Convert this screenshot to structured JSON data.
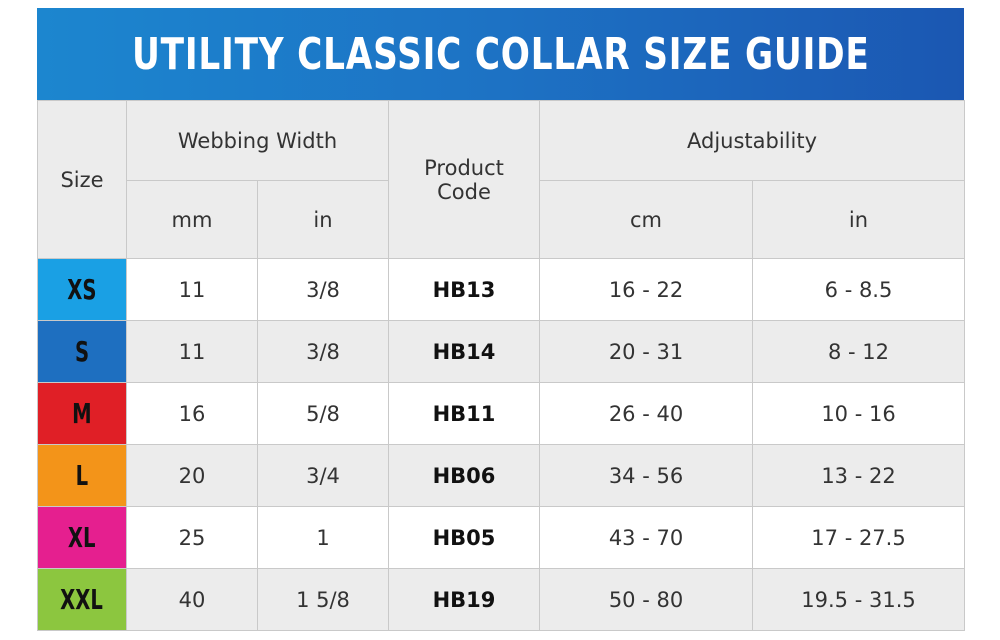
{
  "title": "UTILITY CLASSIC COLLAR SIZE GUIDE",
  "headers": {
    "size": "Size",
    "webbing_width": "Webbing Width",
    "product_code_1": "Product",
    "product_code_2": "Code",
    "adjustability": "Adjustability",
    "mm": "mm",
    "in_webbing": "in",
    "cm": "cm",
    "in_adjust": "in"
  },
  "size_colors": [
    "#1aa0e4",
    "#1e6fc0",
    "#e01f26",
    "#f39419",
    "#e51f8f",
    "#8cc63f"
  ],
  "rows": [
    {
      "size": "XS",
      "mm": "11",
      "in": "3/8",
      "code": "HB13",
      "cm": "16 - 22",
      "adj_in": "6 - 8.5"
    },
    {
      "size": "S",
      "mm": "11",
      "in": "3/8",
      "code": "HB14",
      "cm": "20 - 31",
      "adj_in": "8 - 12"
    },
    {
      "size": "M",
      "mm": "16",
      "in": "5/8",
      "code": "HB11",
      "cm": "26 - 40",
      "adj_in": "10 - 16"
    },
    {
      "size": "L",
      "mm": "20",
      "in": "3/4",
      "code": "HB06",
      "cm": "34 - 56",
      "adj_in": "13 - 22"
    },
    {
      "size": "XL",
      "mm": "25",
      "in": "1",
      "code": "HB05",
      "cm": "43 - 70",
      "adj_in": "17 - 27.5"
    },
    {
      "size": "XXL",
      "mm": "40",
      "in": "1 5/8",
      "code": "HB19",
      "cm": "50 - 80",
      "adj_in": "19.5 - 31.5"
    }
  ]
}
